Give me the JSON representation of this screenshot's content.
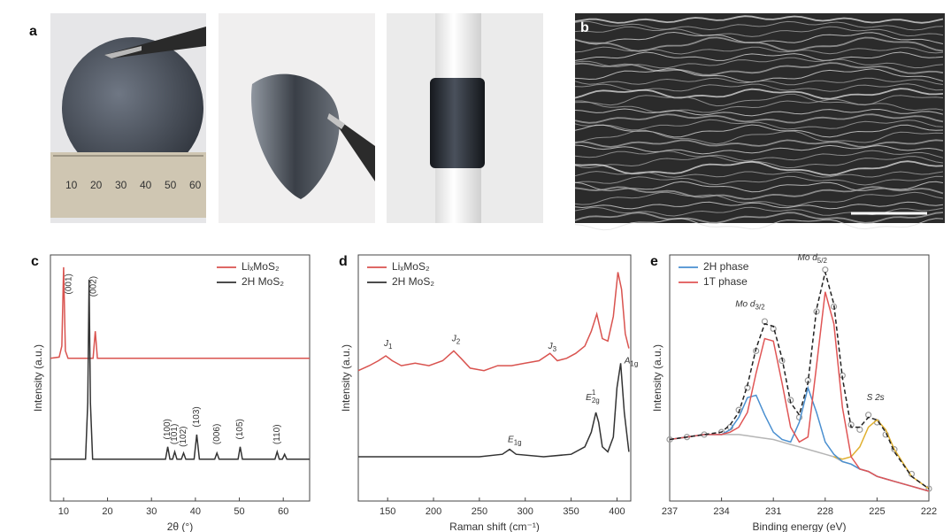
{
  "photo_panels": [
    "a",
    "b"
  ],
  "ruler_labels": [
    "10",
    "20",
    "30",
    "40",
    "50",
    "60"
  ],
  "chart_data": [
    {
      "type": "line",
      "panel": "c",
      "xlabel": "2θ (°)",
      "ylabel": "Intensity (a.u.)",
      "xlim": [
        7,
        66
      ],
      "xticks": [
        10,
        20,
        30,
        40,
        50,
        60
      ],
      "ylim": [
        0,
        100
      ],
      "legend": "upper right",
      "vertical_annotations": true,
      "series": [
        {
          "name": "LiₓMoS₂",
          "color": "#d9534f",
          "x": [
            7,
            9,
            9.6,
            10,
            10.4,
            11,
            14,
            16.7,
            17.2,
            17.7,
            20,
            30,
            40,
            50,
            60,
            66
          ],
          "values": [
            58,
            58.5,
            63,
            95,
            61,
            58,
            58,
            58,
            69,
            58,
            58,
            58,
            58,
            58,
            58,
            58
          ]
        },
        {
          "name": "2H MoS₂",
          "color": "#333333",
          "x": [
            7,
            12,
            15,
            15.5,
            15.8,
            16.1,
            16.6,
            20,
            30,
            33.2,
            33.7,
            34.2,
            34.8,
            35.3,
            35.8,
            36.8,
            37.3,
            37.8,
            39.7,
            40.3,
            40.9,
            44.4,
            44.9,
            45.4,
            49.7,
            50.2,
            50.7,
            56,
            58.1,
            58.6,
            59.1,
            59.8,
            60.3,
            60.8,
            66
          ],
          "values": [
            17,
            17,
            17,
            40,
            90,
            40,
            17,
            17,
            17,
            17,
            22,
            17,
            17,
            20,
            17,
            17,
            19.5,
            17,
            17,
            27,
            17,
            17,
            19.5,
            17,
            17,
            22,
            17,
            17,
            17,
            20,
            17,
            17,
            19,
            17,
            17
          ]
        }
      ],
      "annotations": [
        {
          "text": "(001)",
          "x": 11.2,
          "y": 84
        },
        {
          "text": "(002)",
          "x": 16.8,
          "y": 83
        },
        {
          "text": "(100)",
          "x": 33.7,
          "y": 25
        },
        {
          "text": "(101)",
          "x": 35.3,
          "y": 23
        },
        {
          "text": "(102)",
          "x": 37.3,
          "y": 22
        },
        {
          "text": "(103)",
          "x": 40.3,
          "y": 30
        },
        {
          "text": "(006)",
          "x": 44.9,
          "y": 23
        },
        {
          "text": "(105)",
          "x": 50.2,
          "y": 25
        },
        {
          "text": "(110)",
          "x": 58.6,
          "y": 23
        }
      ]
    },
    {
      "type": "line",
      "panel": "d",
      "xlabel": "Raman shift (cm⁻¹)",
      "ylabel": "Intensity (a.u.)",
      "xlim": [
        118,
        415
      ],
      "xticks": [
        150,
        200,
        250,
        300,
        350,
        400
      ],
      "ylim": [
        0,
        100
      ],
      "legend": "upper left",
      "series": [
        {
          "name": "LiₓMoS₂",
          "color": "#d9534f",
          "x": [
            118,
            130,
            140,
            148,
            155,
            165,
            180,
            195,
            210,
            222,
            230,
            240,
            255,
            270,
            285,
            300,
            315,
            327,
            335,
            345,
            355,
            365,
            372,
            378,
            384,
            390,
            396,
            401,
            405,
            409,
            413
          ],
          "values": [
            53,
            55,
            57,
            59,
            57,
            55,
            56,
            55,
            57,
            61,
            58,
            54,
            53,
            55,
            55,
            56,
            57,
            60,
            57,
            58,
            60,
            63,
            69,
            76,
            66,
            65,
            75,
            93,
            86,
            68,
            62
          ]
        },
        {
          "name": "2H MoS₂",
          "color": "#333333",
          "x": [
            118,
            150,
            200,
            250,
            275,
            283,
            290,
            320,
            350,
            365,
            372,
            377,
            380,
            384,
            390,
            396,
            400,
            404,
            408,
            413
          ],
          "values": [
            18,
            18,
            18,
            18,
            19,
            21,
            19,
            18,
            19,
            22,
            28,
            36,
            32,
            22,
            20,
            26,
            46,
            56,
            36,
            20
          ]
        }
      ],
      "annotations": [
        {
          "text": "J",
          "sub": "1",
          "x": 146,
          "y": 64
        },
        {
          "text": "J",
          "sub": "2",
          "x": 220,
          "y": 66
        },
        {
          "text": "J",
          "sub": "3",
          "x": 325,
          "y": 63
        },
        {
          "text": "E",
          "sub": "1g",
          "x": 281,
          "y": 25
        },
        {
          "text": "E",
          "sup": "1",
          "sub": "2g",
          "x": 366,
          "y": 42
        },
        {
          "text": "A",
          "sub": "1g",
          "x": 408,
          "y": 57
        }
      ]
    },
    {
      "type": "line",
      "panel": "e",
      "xlabel": "Binding energy (eV)",
      "ylabel": "Intensity (a.u.)",
      "xlim": [
        237,
        222
      ],
      "xticks": [
        237,
        234,
        231,
        228,
        225,
        222
      ],
      "ylim": [
        0,
        100
      ],
      "legend": "upper left",
      "x": [
        237,
        236,
        235,
        234,
        233.5,
        233,
        232.5,
        232,
        231.5,
        231,
        230.5,
        230,
        229.5,
        229,
        228.5,
        228,
        227.5,
        227,
        226.5,
        226,
        225.5,
        225,
        224.5,
        224,
        223,
        222
      ],
      "series": [
        {
          "color": "#9a9a9a",
          "marker": "circle",
          "values": [
            25,
            26,
            27,
            28,
            30,
            37,
            46,
            61,
            73,
            70,
            57,
            41,
            34,
            49,
            77,
            94,
            79,
            51,
            31,
            29,
            35,
            32,
            27,
            21,
            11,
            5
          ]
        },
        {
          "color": "#b5b5b5",
          "values": [
            25,
            26,
            27,
            27,
            27,
            27,
            26.5,
            26,
            25.5,
            25,
            24,
            23,
            22,
            21,
            20,
            19,
            18,
            16,
            15,
            13,
            12,
            10,
            9,
            8,
            6,
            4
          ]
        },
        {
          "color": "#e0b030",
          "values": [
            null,
            null,
            null,
            null,
            null,
            null,
            null,
            null,
            null,
            null,
            null,
            null,
            null,
            null,
            null,
            null,
            18,
            17,
            18,
            22,
            30,
            33,
            29,
            21,
            10,
            5
          ]
        },
        {
          "name": "2H phase",
          "color": "#4a8fd0",
          "values": [
            25,
            26,
            27,
            27,
            29,
            34,
            42,
            43,
            35,
            28,
            25,
            24,
            32,
            46,
            36,
            24,
            19,
            16,
            15,
            13,
            12,
            10,
            9,
            8,
            6,
            4
          ]
        },
        {
          "name": "1T phase",
          "color": "#e05555",
          "values": [
            25,
            26,
            27,
            27,
            28,
            30,
            36,
            52,
            66,
            65,
            48,
            30,
            24,
            26,
            55,
            85,
            72,
            38,
            18,
            13,
            12,
            10,
            9,
            8,
            6,
            4
          ]
        },
        {
          "color": "#222222",
          "dash": true,
          "values": [
            25,
            26,
            27,
            28,
            31,
            36,
            47,
            62,
            72,
            71,
            58,
            40,
            35,
            48,
            78,
            93,
            80,
            50,
            30,
            30,
            34,
            33,
            28,
            20,
            10,
            5
          ]
        }
      ],
      "annotations": [
        {
          "text": "Mo d",
          "sub": "3/2",
          "x": 233.2,
          "y": 80
        },
        {
          "text": "Mo d",
          "sub": "5/2",
          "x": 229.6,
          "y": 99
        },
        {
          "text": "S 2s",
          "x": 225.6,
          "y": 42
        }
      ]
    }
  ]
}
